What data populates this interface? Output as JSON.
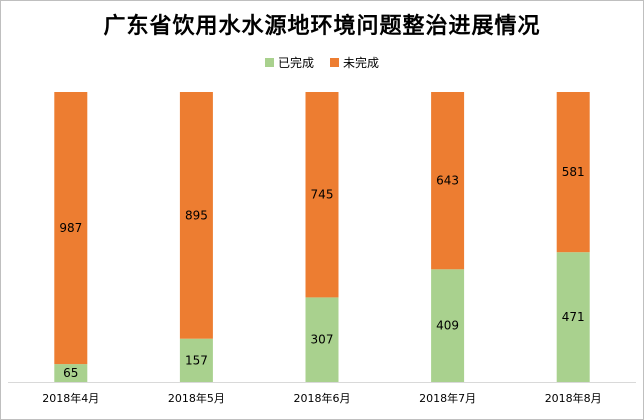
{
  "chart_data": {
    "type": "bar",
    "stacked": true,
    "title": "广东省饮用水水源地环境问题整治进展情况",
    "categories": [
      "2018年4月",
      "2018年5月",
      "2018年6月",
      "2018年7月",
      "2018年8月"
    ],
    "series": [
      {
        "name": "已完成",
        "values": [
          65,
          157,
          307,
          409,
          471
        ],
        "color": "#a9d18e"
      },
      {
        "name": "未完成",
        "values": [
          987,
          895,
          745,
          643,
          581
        ],
        "color": "#ed7d31"
      }
    ],
    "legend_position": "top",
    "grid": false,
    "xlabel": "",
    "ylabel": ""
  }
}
